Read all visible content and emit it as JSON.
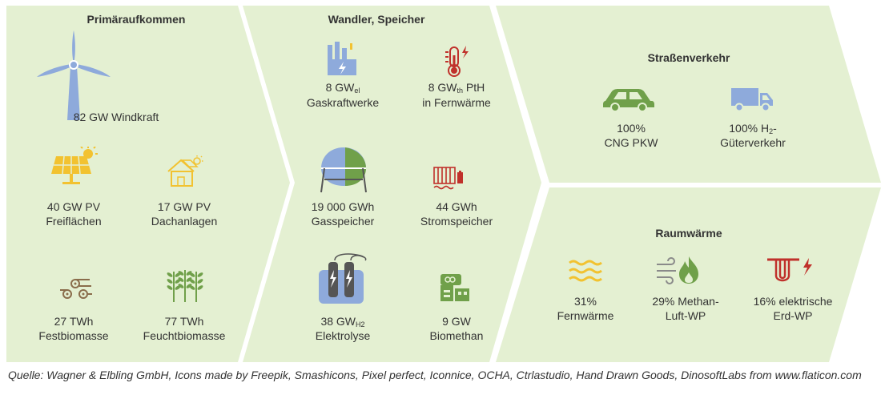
{
  "colors": {
    "panel": "#e4f0d2",
    "icon_blue": "#8eaadb",
    "icon_yellow": "#f2c230",
    "icon_green": "#70a04a",
    "icon_red": "#c0312b",
    "icon_gray": "#6d6d6d"
  },
  "sections": {
    "primary": {
      "title": "Primäraufkommen"
    },
    "converters": {
      "title": "Wandler, Speicher"
    },
    "road": {
      "title": "Straßenverkehr"
    },
    "heat": {
      "title": "Raumwärme"
    }
  },
  "items": {
    "wind": {
      "icon": "wind-turbine",
      "text": "82 GW Windkraft"
    },
    "pv_free": {
      "icon": "solar-panel",
      "line1": "40 GW PV",
      "line2": "Freiflächen"
    },
    "pv_roof": {
      "icon": "house-solar",
      "line1": "17 GW PV",
      "line2": "Dachanlagen"
    },
    "biomass_solid": {
      "icon": "logs",
      "line1": "27 TWh",
      "line2": "Festbiomasse"
    },
    "biomass_wet": {
      "icon": "wheat",
      "line1": "77 TWh",
      "line2": "Feuchtbiomasse"
    },
    "gas_plants": {
      "icon": "power-plant",
      "value": "8 GW",
      "sub": "el",
      "line2": "Gaskraftwerke"
    },
    "pth": {
      "icon": "thermometer",
      "value": "8 GW",
      "sub": "th",
      "suffix": " PtH",
      "line2": "in Fernwärme"
    },
    "gas_storage": {
      "icon": "gas-tank",
      "line1": "19 000 GWh",
      "line2": "Gasspeicher"
    },
    "power_storage": {
      "icon": "battery-heater",
      "line1": "44 GWh",
      "line2": "Stromspeicher"
    },
    "electrolysis": {
      "icon": "electrolyzer",
      "value": "38 GW",
      "sub": "H2",
      "line2": "Elektrolyse"
    },
    "biomethane": {
      "icon": "biogas-plant",
      "line1": "9 GW",
      "line2": "Biomethan"
    },
    "car": {
      "icon": "car",
      "line1": "100%",
      "line2": "CNG PKW"
    },
    "truck": {
      "icon": "truck",
      "prefix": "100% H",
      "sub": "2",
      "suffix": "-",
      "line2": "Güterverkehr"
    },
    "district_heat": {
      "icon": "heat-waves",
      "line1": "31%",
      "line2": "Fernwärme"
    },
    "air_hp": {
      "icon": "air-flame",
      "line1": "29% Methan-",
      "line2": "Luft-WP"
    },
    "ground_hp": {
      "icon": "ground-heat-pump",
      "line1": "16% elektrische",
      "line2": "Erd-WP"
    }
  },
  "source": "Quelle: Wagner & Elbling GmbH, Icons made by Freepik, Smashicons, Pixel perfect, Iconnice, OCHA, Ctrlastudio, Hand Drawn Goods, DinosoftLabs from www.flaticon.com"
}
